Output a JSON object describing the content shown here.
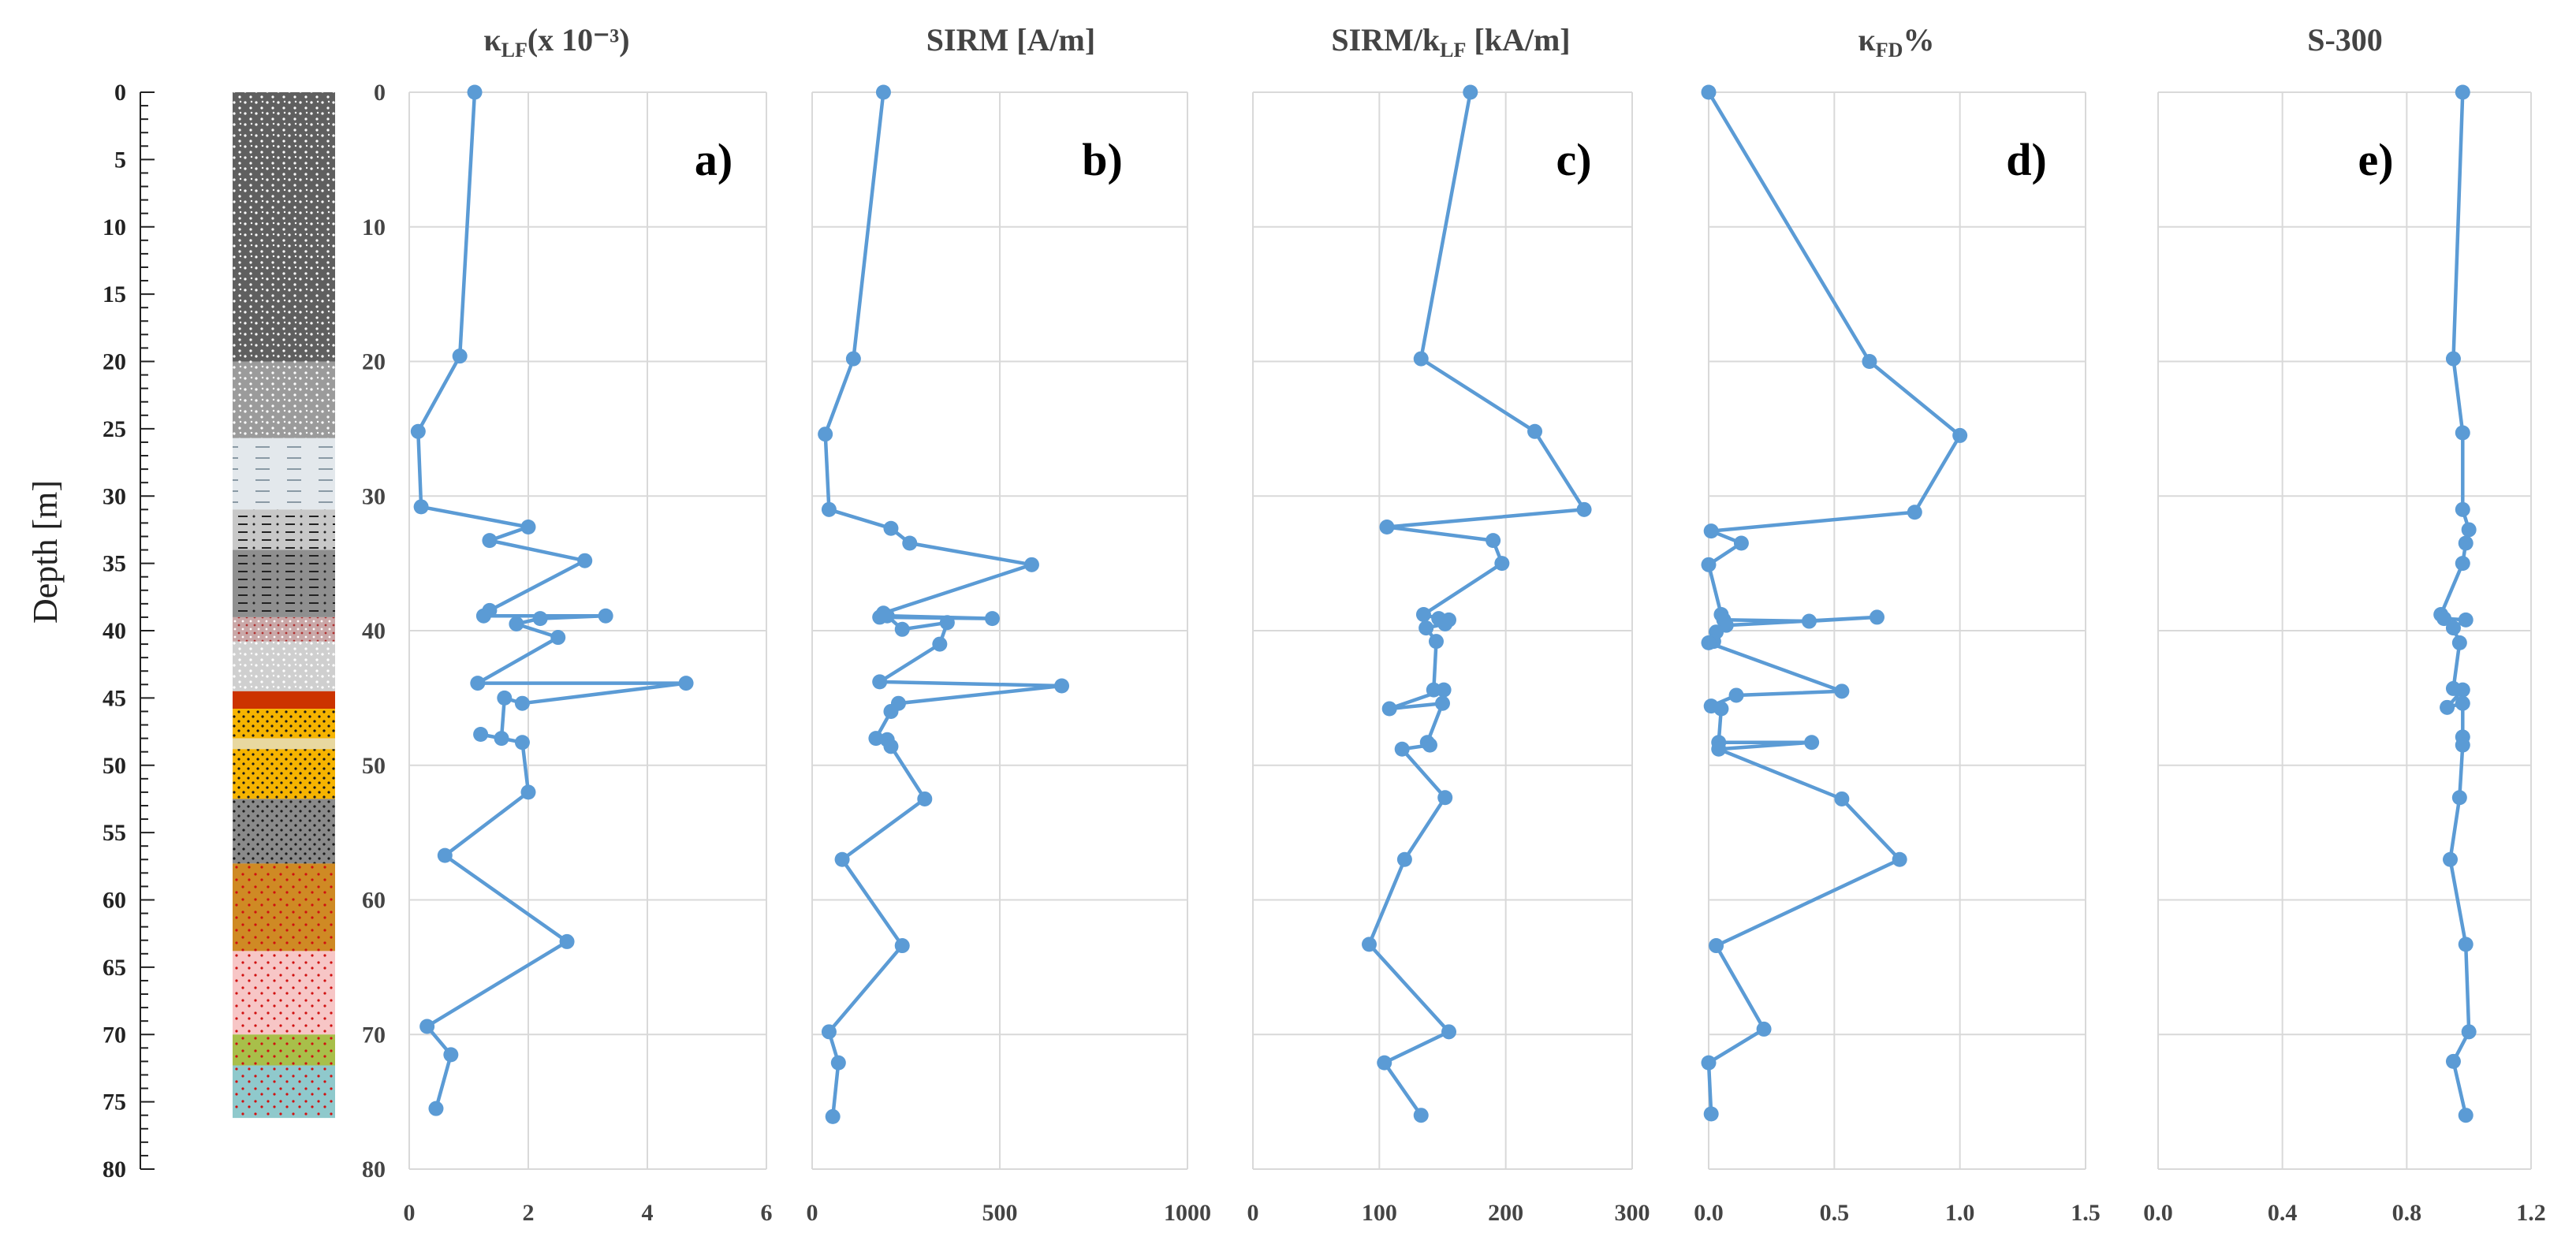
{
  "depth_axis": {
    "label": "Depth [m]",
    "ticks": [
      "0",
      "5",
      "10",
      "15",
      "20",
      "25",
      "30",
      "35",
      "40",
      "45",
      "50",
      "55",
      "60",
      "65",
      "70",
      "75",
      "80"
    ],
    "range": [
      0,
      80
    ]
  },
  "lithology_column": {
    "layers": [
      {
        "top": 0,
        "bottom": 20,
        "color": "#5f5f5f",
        "pattern": "white-dots"
      },
      {
        "top": 20,
        "bottom": 25.7,
        "color": "#9b9b9b",
        "pattern": "white-dots"
      },
      {
        "top": 25.7,
        "bottom": 31,
        "color": "#e3e8ec",
        "pattern": "dashes"
      },
      {
        "top": 31,
        "bottom": 34,
        "color": "#c8c8c8",
        "pattern": "dash-dot"
      },
      {
        "top": 34,
        "bottom": 39,
        "color": "#8f8f8f",
        "pattern": "dash-dot"
      },
      {
        "top": 39,
        "bottom": 40.8,
        "color": "#c9a8a8",
        "pattern": "dots"
      },
      {
        "top": 40.8,
        "bottom": 44.5,
        "color": "#cfcfcf",
        "pattern": "white-dots"
      },
      {
        "top": 44.5,
        "bottom": 45.8,
        "color": "#cc3300",
        "pattern": "none"
      },
      {
        "top": 45.8,
        "bottom": 48,
        "color": "#f6b400",
        "pattern": "black-dots"
      },
      {
        "top": 48,
        "bottom": 48.8,
        "color": "#e8d8a0",
        "pattern": "none"
      },
      {
        "top": 48.8,
        "bottom": 52.5,
        "color": "#f6b400",
        "pattern": "black-dots"
      },
      {
        "top": 52.5,
        "bottom": 57.3,
        "color": "#8a8a8a",
        "pattern": "black-dots"
      },
      {
        "top": 57.3,
        "bottom": 63.8,
        "color": "#cf8a24",
        "pattern": "red-dots"
      },
      {
        "top": 63.8,
        "bottom": 70,
        "color": "#f7c6c6",
        "pattern": "red-dots"
      },
      {
        "top": 70,
        "bottom": 72.3,
        "color": "#a8bf4a",
        "pattern": "red-dots"
      },
      {
        "top": 72.3,
        "bottom": 76.2,
        "color": "#8fc9cc",
        "pattern": "red-dots"
      }
    ]
  },
  "chart_data": [
    {
      "type": "line",
      "panel_label": "a)",
      "title": "κ",
      "title_sub": "LF",
      "title_rest": "(x 10⁻³)",
      "xlim": [
        0,
        6
      ],
      "xticks": [
        "0",
        "2",
        "4",
        "6"
      ],
      "ylim": [
        0,
        80
      ],
      "series": [
        {
          "name": "kLF",
          "x": [
            1.1,
            0.85,
            0.15,
            0.2,
            2.0,
            1.35,
            2.95,
            1.35,
            1.25,
            3.3,
            2.2,
            1.8,
            2.5,
            1.15,
            4.65,
            1.9,
            1.6,
            1.55,
            1.2,
            1.9,
            2.0,
            0.6,
            2.65,
            0.3,
            0.7,
            0.45
          ],
          "y": [
            0,
            19.6,
            25.2,
            30.8,
            32.3,
            33.3,
            34.8,
            38.5,
            38.9,
            38.9,
            39.1,
            39.5,
            40.5,
            43.9,
            43.9,
            45.4,
            45,
            48,
            47.7,
            48.3,
            52,
            56.7,
            63.1,
            69.4,
            71.5,
            75.5
          ]
        }
      ]
    },
    {
      "type": "line",
      "panel_label": "b)",
      "title": "SIRM [A/m]",
      "xlim": [
        0,
        1000
      ],
      "xticks": [
        "0",
        "500",
        "1000"
      ],
      "ylim": [
        0,
        80
      ],
      "series": [
        {
          "name": "SIRM",
          "x": [
            190,
            110,
            35,
            45,
            210,
            260,
            585,
            190,
            180,
            480,
            200,
            240,
            360,
            340,
            180,
            665,
            230,
            210,
            170,
            200,
            210,
            300,
            80,
            240,
            45,
            70,
            55
          ],
          "y": [
            0,
            19.8,
            25.4,
            31,
            32.4,
            33.5,
            35.1,
            38.7,
            39,
            39.1,
            38.9,
            39.9,
            39.4,
            41,
            43.8,
            44.1,
            45.4,
            46,
            48,
            48.1,
            48.6,
            52.5,
            57,
            63.4,
            69.8,
            72.1,
            76.1
          ]
        }
      ]
    },
    {
      "type": "line",
      "panel_label": "c)",
      "title": "SIRM/k",
      "title_sub": "LF",
      "title_rest": " [kA/m]",
      "xlim": [
        0,
        300
      ],
      "xticks": [
        "0",
        "100",
        "200",
        "300"
      ],
      "ylim": [
        0,
        80
      ],
      "series": [
        {
          "name": "SIRM/kLF",
          "x": [
            172,
            133,
            223,
            262,
            106,
            190,
            197,
            135,
            147,
            155,
            152,
            137,
            145,
            143,
            151,
            108,
            150,
            138,
            140,
            118,
            152,
            120,
            92,
            155,
            104,
            133
          ],
          "y": [
            0,
            19.8,
            25.2,
            31,
            32.3,
            33.3,
            35,
            38.8,
            39.1,
            39.2,
            39.5,
            39.8,
            40.8,
            44.4,
            44.4,
            45.8,
            45.4,
            48.3,
            48.5,
            48.8,
            52.4,
            57,
            63.3,
            69.8,
            72.1,
            76
          ]
        }
      ]
    },
    {
      "type": "line",
      "panel_label": "d)",
      "title": "κ",
      "title_sub": "FD",
      "title_rest": "%",
      "xlim": [
        0,
        1.5
      ],
      "xticks": [
        "0.0",
        "0.5",
        "1.0",
        "1.5"
      ],
      "ylim": [
        0,
        80
      ],
      "series": [
        {
          "name": "kFD%",
          "x": [
            0.0,
            0.64,
            1.0,
            0.82,
            0.01,
            0.13,
            0.0,
            0.05,
            0.06,
            0.4,
            0.67,
            0.07,
            0.03,
            0.02,
            0.0,
            0.53,
            0.11,
            0.01,
            0.05,
            0.04,
            0.41,
            0.04,
            0.53,
            0.76,
            0.03,
            0.22,
            0.0,
            0.01
          ],
          "y": [
            0,
            20,
            25.5,
            31.2,
            32.6,
            33.5,
            35.1,
            38.8,
            39.2,
            39.3,
            39,
            39.6,
            40.1,
            40.8,
            40.9,
            44.5,
            44.8,
            45.6,
            45.8,
            48.3,
            48.3,
            48.8,
            52.5,
            57,
            63.4,
            69.6,
            72.1,
            75.9
          ]
        }
      ]
    },
    {
      "type": "line",
      "panel_label": "e)",
      "title": "S-300",
      "xlim": [
        0,
        1.2
      ],
      "xticks": [
        "0.0",
        "0.4",
        "0.8",
        "1.2"
      ],
      "ylim": [
        0,
        80
      ],
      "series": [
        {
          "name": "S-300",
          "x": [
            0.98,
            0.95,
            0.98,
            0.98,
            1.0,
            0.99,
            0.98,
            0.91,
            0.92,
            0.99,
            0.95,
            0.97,
            0.95,
            0.98,
            0.93,
            0.98,
            0.98,
            0.98,
            0.97,
            0.94,
            0.99,
            1.0,
            0.95,
            0.99
          ],
          "y": [
            0,
            19.8,
            25.3,
            31,
            32.5,
            33.5,
            35,
            38.8,
            39.1,
            39.2,
            39.8,
            40.9,
            44.3,
            44.4,
            45.7,
            45.4,
            47.9,
            48.5,
            52.4,
            57,
            63.3,
            69.8,
            72,
            76
          ]
        }
      ]
    }
  ]
}
